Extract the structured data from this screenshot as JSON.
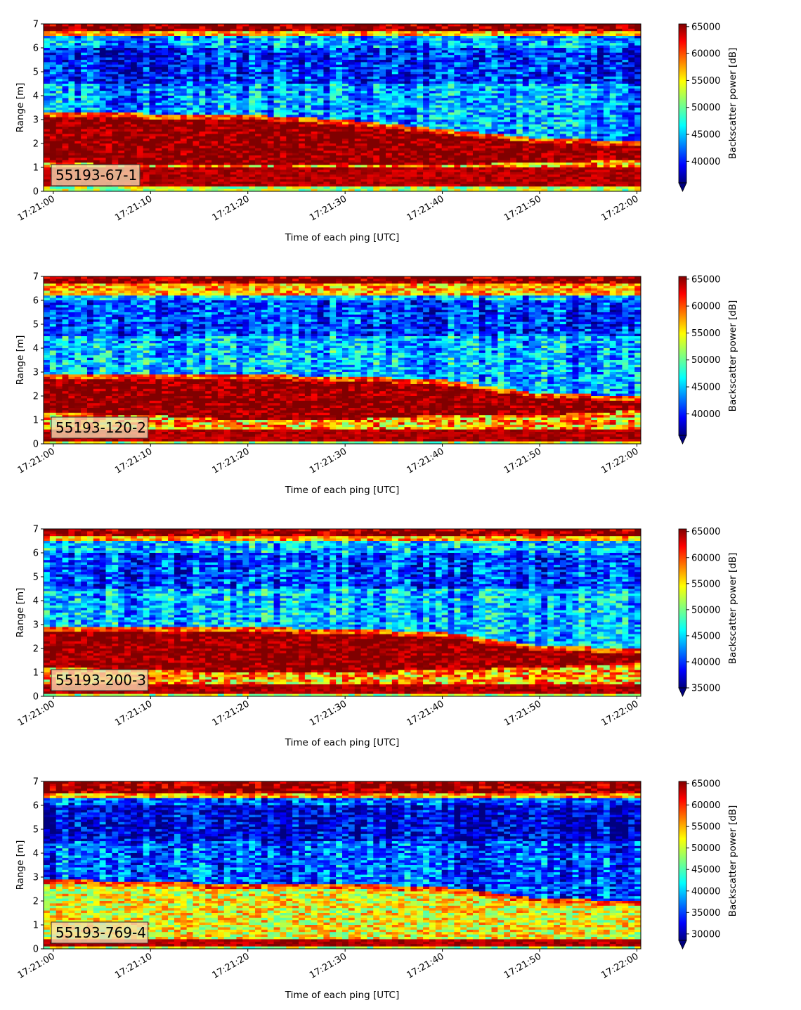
{
  "figure": {
    "type": "echogram-panels",
    "x_label": "Time of each ping [UTC]",
    "y_label": "Range [m]",
    "colorbar_label": "Backscatter power [dB]",
    "colormap": "jet",
    "colormap_stops": [
      "#00007f",
      "#0000ff",
      "#007fff",
      "#00ffff",
      "#7fff7f",
      "#ffff00",
      "#ff7f00",
      "#ff0000",
      "#7f0000"
    ]
  },
  "chart_data": [
    {
      "type": "heatmap",
      "id_label": "55193-67-1",
      "xlabel": "Time of each ping [UTC]",
      "ylabel": "Range [m]",
      "x_ticks": [
        "17:21:00",
        "17:21:10",
        "17:21:20",
        "17:21:30",
        "17:21:40",
        "17:21:50",
        "17:22:00"
      ],
      "x_range": [
        "17:20:59",
        "17:22:00.4"
      ],
      "y_ticks": [
        0,
        1,
        2,
        3,
        4,
        5,
        6,
        7
      ],
      "ylim": [
        0,
        7
      ],
      "colorbar": {
        "label": "Backscatter power [dB]",
        "ticks": [
          40000,
          45000,
          50000,
          55000,
          60000,
          65000
        ],
        "vmin": 36000,
        "vmax": 65500,
        "extend": "min"
      },
      "features": {
        "bottom_band_top_m": [
          3.3,
          3.25,
          3.2,
          3.0,
          2.6,
          2.2,
          2.1
        ],
        "bottom_band_base_m": [
          1.2,
          1.1,
          1.1,
          1.1,
          1.1,
          1.2,
          1.3
        ],
        "surface_band_m": [
          6.5,
          7.0
        ],
        "near_band_m": [
          0.2,
          1.0
        ],
        "background_level": 44000
      }
    },
    {
      "type": "heatmap",
      "id_label": "55193-120-2",
      "xlabel": "Time of each ping [UTC]",
      "ylabel": "Range [m]",
      "x_ticks": [
        "17:21:00",
        "17:21:10",
        "17:21:20",
        "17:21:30",
        "17:21:40",
        "17:21:50",
        "17:22:00"
      ],
      "x_range": [
        "17:20:59",
        "17:22:00.4"
      ],
      "y_ticks": [
        0,
        1,
        2,
        3,
        4,
        5,
        6,
        7
      ],
      "ylim": [
        0,
        7
      ],
      "colorbar": {
        "label": "Backscatter power [dB]",
        "ticks": [
          40000,
          45000,
          50000,
          55000,
          60000,
          65000
        ],
        "vmin": 36000,
        "vmax": 65500,
        "extend": "min"
      },
      "features": {
        "bottom_band_top_m": [
          2.9,
          2.9,
          2.9,
          2.8,
          2.7,
          2.1,
          2.0
        ],
        "bottom_band_base_m": [
          1.3,
          1.2,
          1.0,
          1.0,
          1.2,
          1.2,
          1.4
        ],
        "surface_band_m": [
          6.2,
          7.0
        ],
        "near_band_m": [
          0.1,
          0.6
        ],
        "background_level": 45000
      }
    },
    {
      "type": "heatmap",
      "id_label": "55193-200-3",
      "xlabel": "Time of each ping [UTC]",
      "ylabel": "Range [m]",
      "x_ticks": [
        "17:21:00",
        "17:21:10",
        "17:21:20",
        "17:21:30",
        "17:21:40",
        "17:21:50",
        "17:22:00"
      ],
      "x_range": [
        "17:20:59",
        "17:22:00.4"
      ],
      "y_ticks": [
        0,
        1,
        2,
        3,
        4,
        5,
        6,
        7
      ],
      "ylim": [
        0,
        7
      ],
      "colorbar": {
        "label": "Backscatter power [dB]",
        "ticks": [
          35000,
          40000,
          45000,
          50000,
          55000,
          60000,
          65000
        ],
        "vmin": 35000,
        "vmax": 65500,
        "extend": "min"
      },
      "features": {
        "bottom_band_top_m": [
          2.9,
          2.9,
          2.9,
          2.8,
          2.7,
          2.1,
          2.0
        ],
        "bottom_band_base_m": [
          1.2,
          1.1,
          1.0,
          1.0,
          1.1,
          1.2,
          1.4
        ],
        "surface_band_m": [
          6.5,
          7.0
        ],
        "near_band_m": [
          0.1,
          0.5
        ],
        "background_level": 44500
      }
    },
    {
      "type": "heatmap",
      "id_label": "55193-769-4",
      "xlabel": "Time of each ping [UTC]",
      "ylabel": "Range [m]",
      "x_ticks": [
        "17:21:00",
        "17:21:10",
        "17:21:20",
        "17:21:30",
        "17:21:40",
        "17:21:50",
        "17:22:00"
      ],
      "x_range": [
        "17:20:59",
        "17:22:00.4"
      ],
      "y_ticks": [
        0,
        1,
        2,
        3,
        4,
        5,
        6,
        7
      ],
      "ylim": [
        0,
        7
      ],
      "colorbar": {
        "label": "Backscatter power [dB]",
        "ticks": [
          30000,
          35000,
          40000,
          45000,
          50000,
          55000,
          60000,
          65000
        ],
        "vmin": 28500,
        "vmax": 65500,
        "extend": "min"
      },
      "features": {
        "bottom_band_top_m": [
          2.9,
          2.8,
          2.7,
          2.7,
          2.6,
          2.1,
          2.0
        ],
        "bottom_band_base_m": [
          0.4,
          0.4,
          0.4,
          0.4,
          0.4,
          0.4,
          0.4
        ],
        "surface_band_m": [
          6.3,
          6.8
        ],
        "near_band_m": [
          0.1,
          0.4
        ],
        "background_level": 36000
      }
    }
  ]
}
